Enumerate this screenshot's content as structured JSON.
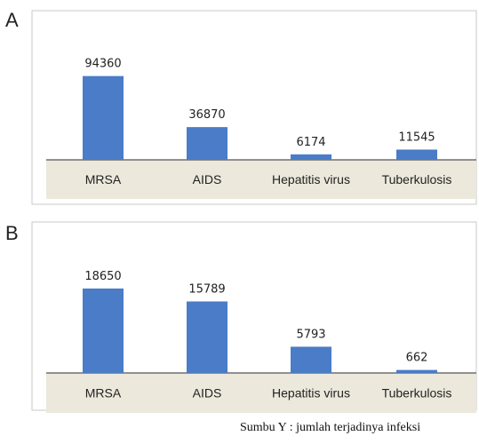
{
  "chart_data": [
    {
      "type": "bar",
      "panel_label": "A",
      "categories": [
        "MRSA",
        "AIDS",
        "Hepatitis virus",
        "Tuberkulosis"
      ],
      "values": [
        94360,
        36870,
        6174,
        11545
      ],
      "data_labels": [
        "94360",
        "36870",
        "6174",
        "11545"
      ],
      "ylim": [
        0,
        100000
      ],
      "grid": false,
      "bar_color": "#4a7cc7",
      "axis_band_color": "#ece8dc"
    },
    {
      "type": "bar",
      "panel_label": "B",
      "categories": [
        "MRSA",
        "AIDS",
        "Hepatitis virus",
        "Tuberkulosis"
      ],
      "values": [
        18650,
        15789,
        5793,
        662
      ],
      "data_labels": [
        "18650",
        "15789",
        "5793",
        "662"
      ],
      "ylim": [
        0,
        20000
      ],
      "grid": false,
      "bar_color": "#4a7cc7",
      "axis_band_color": "#ece8dc"
    }
  ],
  "caption": "Sumbu Y : jumlah terjadinya infeksi"
}
